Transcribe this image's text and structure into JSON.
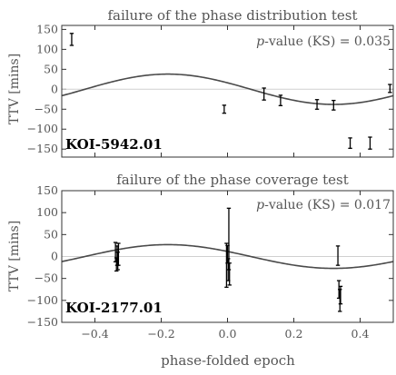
{
  "chart_data": [
    {
      "type": "scatter",
      "title": "failure of the phase distribution test",
      "ylabel": "TTV [mins]",
      "xlabel": "",
      "annotation_prefix": "p",
      "annotation": "-value (KS) = 0.035",
      "label": "KOI-5942.01",
      "xlim": [
        -0.5,
        0.5
      ],
      "ylim": [
        -170,
        160
      ],
      "yticks": [
        150,
        100,
        50,
        0,
        -50,
        -100,
        -150
      ],
      "xticks": [
        -0.4,
        -0.2,
        0.0,
        0.2,
        0.4
      ],
      "grid": false,
      "sine": {
        "amplitude": 38,
        "phase_of_peak": -0.18
      },
      "points": [
        {
          "x": -0.47,
          "y": 125,
          "err": 15
        },
        {
          "x": -0.01,
          "y": -50,
          "err": 10
        },
        {
          "x": 0.11,
          "y": -12,
          "err": 15
        },
        {
          "x": 0.16,
          "y": -28,
          "err": 13
        },
        {
          "x": 0.27,
          "y": -38,
          "err": 12
        },
        {
          "x": 0.32,
          "y": -40,
          "err": 12
        },
        {
          "x": 0.37,
          "y": -135,
          "err": 13
        },
        {
          "x": 0.43,
          "y": -135,
          "err": 15
        },
        {
          "x": 0.49,
          "y": 2,
          "err": 10
        }
      ]
    },
    {
      "type": "scatter",
      "title": "failure of the phase coverage test",
      "ylabel": "TTV [mins]",
      "xlabel": "phase-folded epoch",
      "annotation_prefix": "p",
      "annotation": "-value (KS) = 0.017",
      "label": "KOI-2177.01",
      "xlim": [
        -0.5,
        0.5
      ],
      "ylim": [
        -150,
        150
      ],
      "yticks": [
        150,
        100,
        50,
        0,
        -50,
        -100,
        -150
      ],
      "xticks": [
        -0.4,
        -0.2,
        0.0,
        0.2,
        0.4
      ],
      "xtick_labels": [
        "−0.4",
        "−0.2",
        "0.0",
        "0.2",
        "0.4"
      ],
      "grid": false,
      "sine": {
        "amplitude": 27,
        "phase_of_peak": -0.18
      },
      "points": [
        {
          "x": -0.338,
          "y": 10,
          "err": 22
        },
        {
          "x": -0.335,
          "y": -18,
          "err": 15
        },
        {
          "x": -0.333,
          "y": 2,
          "err": 22
        },
        {
          "x": -0.331,
          "y": -10,
          "err": 20
        },
        {
          "x": -0.329,
          "y": 5,
          "err": 25
        },
        {
          "x": -0.003,
          "y": -20,
          "err": 50
        },
        {
          "x": 0.0,
          "y": 5,
          "err": 20
        },
        {
          "x": 0.002,
          "y": -30,
          "err": 25
        },
        {
          "x": 0.004,
          "y": 40,
          "err": 70
        },
        {
          "x": 0.006,
          "y": -40,
          "err": 25
        },
        {
          "x": 0.333,
          "y": 2,
          "err": 22
        },
        {
          "x": 0.336,
          "y": -75,
          "err": 20
        },
        {
          "x": 0.339,
          "y": -100,
          "err": 25
        },
        {
          "x": 0.341,
          "y": -88,
          "err": 20
        }
      ]
    }
  ]
}
